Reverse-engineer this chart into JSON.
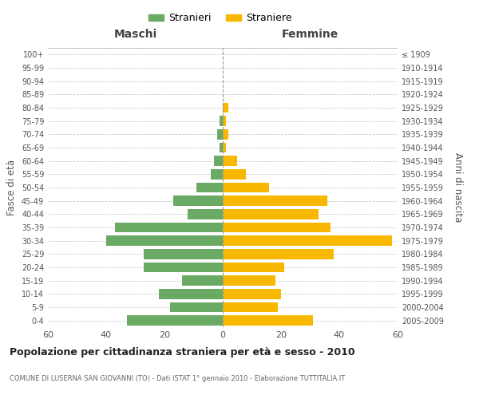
{
  "age_groups": [
    "0-4",
    "5-9",
    "10-14",
    "15-19",
    "20-24",
    "25-29",
    "30-34",
    "35-39",
    "40-44",
    "45-49",
    "50-54",
    "55-59",
    "60-64",
    "65-69",
    "70-74",
    "75-79",
    "80-84",
    "85-89",
    "90-94",
    "95-99",
    "100+"
  ],
  "birth_years": [
    "2005-2009",
    "2000-2004",
    "1995-1999",
    "1990-1994",
    "1985-1989",
    "1980-1984",
    "1975-1979",
    "1970-1974",
    "1965-1969",
    "1960-1964",
    "1955-1959",
    "1950-1954",
    "1945-1949",
    "1940-1944",
    "1935-1939",
    "1930-1934",
    "1925-1929",
    "1920-1924",
    "1915-1919",
    "1910-1914",
    "≤ 1909"
  ],
  "maschi": [
    33,
    18,
    22,
    14,
    27,
    27,
    40,
    37,
    12,
    17,
    9,
    4,
    3,
    1,
    2,
    1,
    0,
    0,
    0,
    0,
    0
  ],
  "femmine": [
    31,
    19,
    20,
    18,
    21,
    38,
    58,
    37,
    33,
    36,
    16,
    8,
    5,
    1,
    2,
    1,
    2,
    0,
    0,
    0,
    0
  ],
  "color_maschi": "#6aaa64",
  "color_femmine": "#f9b800",
  "background_color": "#ffffff",
  "grid_color": "#cccccc",
  "title": "Popolazione per cittadinanza straniera per età e sesso - 2010",
  "subtitle": "COMUNE DI LUSERNA SAN GIOVANNI (TO) - Dati ISTAT 1° gennaio 2010 - Elaborazione TUTTITALIA.IT",
  "xlabel_left": "Maschi",
  "xlabel_right": "Femmine",
  "ylabel_left": "Fasce di età",
  "ylabel_right": "Anni di nascita",
  "legend_maschi": "Stranieri",
  "legend_femmine": "Straniere",
  "xlim": 60
}
